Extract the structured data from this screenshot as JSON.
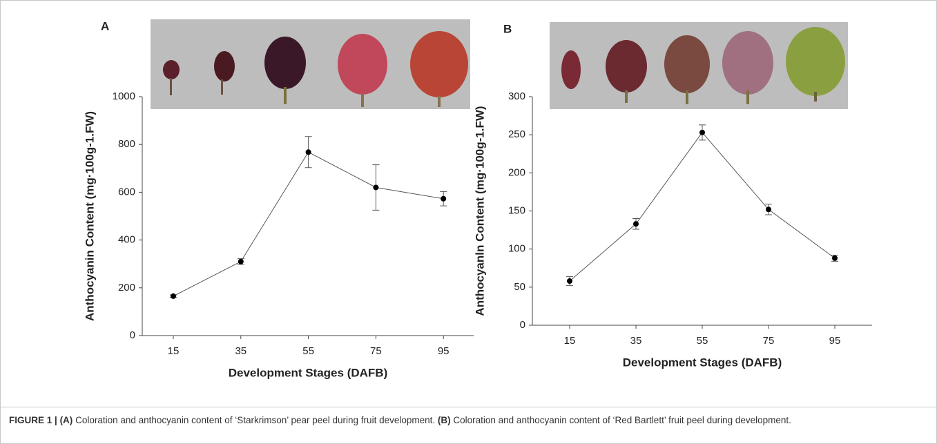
{
  "chart_data": [
    {
      "type": "line",
      "panel": "A",
      "x_label": "Development Stages (DAFB)",
      "y_label": "Anthocyanin Content (mg·100g-1.FW)",
      "categories": [
        "15",
        "35",
        "55",
        "75",
        "95"
      ],
      "values": [
        165,
        310,
        768,
        620,
        573
      ],
      "errors": [
        5,
        12,
        65,
        95,
        30
      ],
      "color": "#000000",
      "ylim": [
        0,
        1000
      ],
      "yticks": [
        0,
        200,
        400,
        600,
        800,
        1000
      ]
    },
    {
      "type": "line",
      "panel": "B",
      "x_label": "Development Stages (DAFB)",
      "y_label": "Anthocyanln Content  (mg·100g-1.FW)",
      "categories": [
        "15",
        "35",
        "55",
        "75",
        "95"
      ],
      "values": [
        58,
        133,
        253,
        152,
        88
      ],
      "errors": [
        6,
        7,
        10,
        7,
        4
      ],
      "color": "#000000",
      "ylim": [
        0,
        300
      ],
      "yticks": [
        0,
        50,
        100,
        150,
        200,
        250,
        300
      ]
    }
  ],
  "caption": {
    "figure_label": "FIGURE 1 |",
    "a_label": "(A)",
    "a_text": " Coloration and anthocyanin content of ‘Starkrimson’ pear peel during fruit development. ",
    "b_label": "(B)",
    "b_text": " Coloration and anthocyanin content of ‘Red Bartlett’ fruit peel during development."
  }
}
